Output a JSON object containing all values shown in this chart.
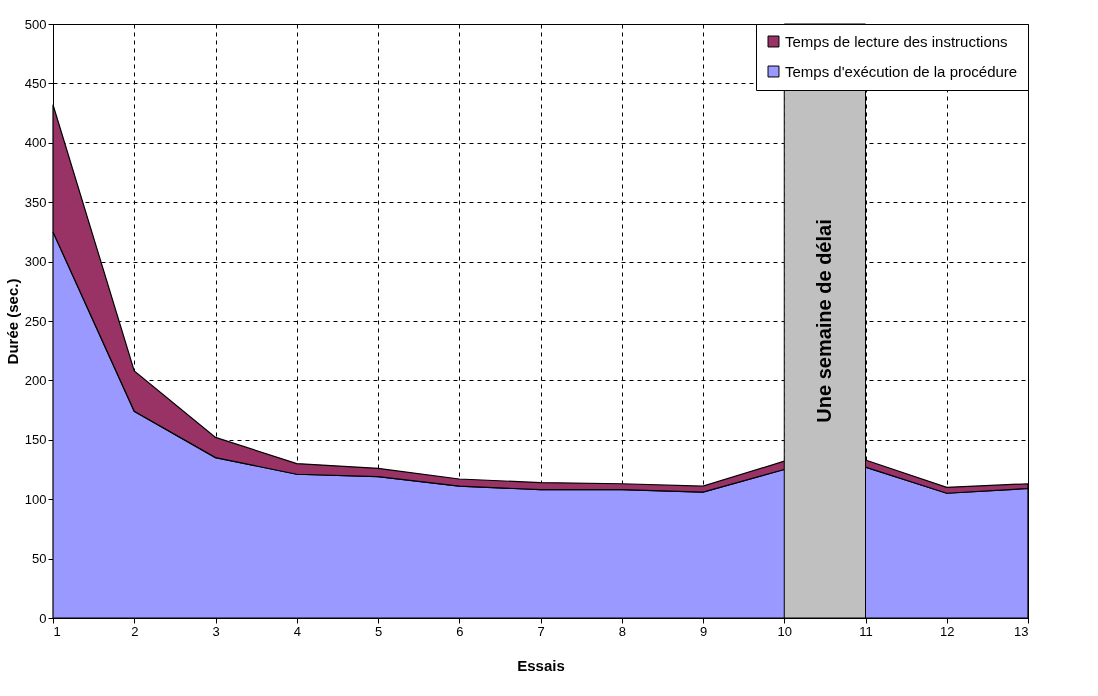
{
  "chart_data": {
    "type": "area",
    "stacked": true,
    "xlabel": "Essais",
    "ylabel": "Durée (sec.)",
    "x": [
      1,
      2,
      3,
      4,
      5,
      6,
      7,
      8,
      9,
      10,
      11,
      12,
      13
    ],
    "series": [
      {
        "name": "Temps d'exécution de la procédure",
        "color": "#9999ff",
        "values": [
          325,
          174,
          135,
          121,
          119,
          111,
          108,
          108,
          106,
          125,
          127,
          105,
          109
        ]
      },
      {
        "name": "Temps de lecture des instructions",
        "color": "#993366",
        "values": [
          107,
          34,
          17,
          9,
          7,
          6,
          6,
          5,
          5,
          7,
          6,
          5,
          4
        ]
      }
    ],
    "xlim": [
      1,
      13
    ],
    "xticks": [
      1,
      2,
      3,
      4,
      5,
      6,
      7,
      8,
      9,
      10,
      11,
      12,
      13
    ],
    "ylim": [
      0,
      500
    ],
    "yticks": [
      0,
      50,
      100,
      150,
      200,
      250,
      300,
      350,
      400,
      450,
      500
    ],
    "bands": [
      {
        "axis": "x",
        "from": 10,
        "to": 11,
        "label": "Une semaine de délai",
        "color": "#c0c0c0"
      }
    ],
    "grid": true,
    "legend": "top right"
  }
}
